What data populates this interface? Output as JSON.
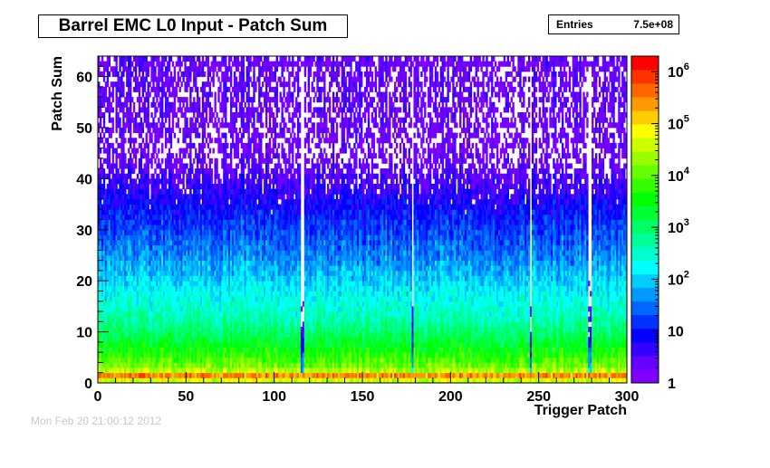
{
  "stats": {
    "entries_label": "Entries",
    "entries_value": "7.5e+08"
  },
  "date_stamp": "Mon Feb 20 21:00:12 2012",
  "chart_data": {
    "type": "heatmap",
    "title": "Barrel EMC L0 Input - Patch Sum",
    "xlabel": "Trigger Patch",
    "ylabel": "Patch Sum",
    "xlim": [
      0,
      300
    ],
    "ylim": [
      0,
      64
    ],
    "x_ticks": [
      0,
      50,
      100,
      150,
      200,
      250,
      300
    ],
    "y_ticks": [
      0,
      10,
      20,
      30,
      40,
      50,
      60
    ],
    "z_scale": "log",
    "z_range": [
      1,
      2000000
    ],
    "z_ticks": [
      {
        "value": 1,
        "label": "1"
      },
      {
        "value": 10,
        "label": "10"
      },
      {
        "value": 100,
        "label": "10^2"
      },
      {
        "value": 1000,
        "label": "10^3"
      },
      {
        "value": 10000,
        "label": "10^4"
      },
      {
        "value": 100000,
        "label": "10^5"
      },
      {
        "value": 1000000,
        "label": "10^6"
      }
    ],
    "palette": [
      "#8000ff",
      "#6600ff",
      "#3300ff",
      "#0000ff",
      "#0033ff",
      "#0066ff",
      "#0099ff",
      "#00ccff",
      "#00ffff",
      "#00ffcc",
      "#00ff99",
      "#00ff66",
      "#00ff33",
      "#00ff00",
      "#33ff00",
      "#66ff00",
      "#99ff00",
      "#ccff00",
      "#ffff00",
      "#ffcc00",
      "#ff9900",
      "#ff6600",
      "#ff3300",
      "#ff0000"
    ],
    "profile": {
      "description_bins": "approximate log10 counts per patch-sum bin (typical trigger patch)",
      "bins": [
        {
          "y": 0,
          "log10_count": 3.0
        },
        {
          "y": 1,
          "log10_count": 6.2
        },
        {
          "y": 2,
          "log10_count": 4.7
        },
        {
          "y": 3,
          "log10_count": 4.2
        },
        {
          "y": 5,
          "log10_count": 3.8
        },
        {
          "y": 8,
          "log10_count": 3.3
        },
        {
          "y": 12,
          "log10_count": 2.7
        },
        {
          "y": 18,
          "log10_count": 2.2
        },
        {
          "y": 25,
          "log10_count": 1.6
        },
        {
          "y": 32,
          "log10_count": 1.1
        },
        {
          "y": 38,
          "log10_count": 0.6
        },
        {
          "y": 45,
          "log10_count": 0.2
        },
        {
          "y": 62,
          "log10_count": 0.3
        }
      ]
    },
    "dead_patches": [
      115,
      116,
      178,
      245,
      278,
      279
    ]
  }
}
